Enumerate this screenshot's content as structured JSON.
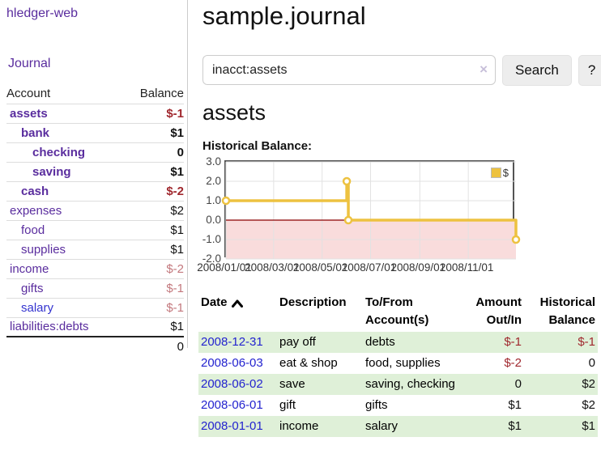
{
  "app_title": "hledger-web",
  "sidebar": {
    "journal_link": "Journal",
    "headers": {
      "account": "Account",
      "balance": "Balance"
    },
    "accounts": [
      {
        "name": "assets",
        "balance": "$-1",
        "depth": 1,
        "bold": true,
        "balance_style": "neg-strong"
      },
      {
        "name": "bank",
        "balance": "$1",
        "depth": 2,
        "bold": true,
        "balance_style": "pos"
      },
      {
        "name": "checking",
        "balance": "0",
        "depth": 3,
        "bold": true,
        "balance_style": "pos"
      },
      {
        "name": "saving",
        "balance": "$1",
        "depth": 3,
        "bold": true,
        "balance_style": "pos"
      },
      {
        "name": "cash",
        "balance": "$-2",
        "depth": 2,
        "bold": true,
        "balance_style": "neg-strong"
      },
      {
        "name": "expenses",
        "balance": "$2",
        "depth": 1,
        "bold": false,
        "balance_style": "pos"
      },
      {
        "name": "food",
        "balance": "$1",
        "depth": 2,
        "bold": false,
        "balance_style": "pos"
      },
      {
        "name": "supplies",
        "balance": "$1",
        "depth": 2,
        "bold": false,
        "balance_style": "pos"
      },
      {
        "name": "income",
        "balance": "$-2",
        "depth": 1,
        "bold": false,
        "balance_style": "neg-muted"
      },
      {
        "name": "gifts",
        "balance": "$-1",
        "depth": 2,
        "bold": false,
        "balance_style": "neg-muted"
      },
      {
        "name": "salary",
        "balance": "$-1",
        "depth": 2,
        "bold": false,
        "balance_style": "neg-muted",
        "link_style": "blue"
      },
      {
        "name": "liabilities:debts",
        "balance": "$1",
        "depth": 1,
        "bold": false,
        "balance_style": "pos"
      }
    ],
    "total": "0"
  },
  "main": {
    "title": "sample.journal",
    "search": {
      "value": "inacct:assets",
      "clear_icon": "×",
      "button_label": "Search",
      "help_label": "?"
    },
    "account_heading": "assets",
    "chart_title": "Historical Balance:"
  },
  "chart_data": {
    "type": "line",
    "title": "Historical Balance",
    "step": true,
    "series": [
      {
        "name": "$",
        "points": [
          {
            "date": "2008-01-01",
            "value": 1
          },
          {
            "date": "2008-06-01",
            "value": 2
          },
          {
            "date": "2008-06-03",
            "value": 0
          },
          {
            "date": "2008-12-31",
            "value": -1
          }
        ]
      }
    ],
    "xlim": [
      "2008-01-01",
      "2008-12-31"
    ],
    "ylim": [
      -2,
      3
    ],
    "yticks": [
      3,
      2,
      1,
      0,
      -1,
      -2
    ],
    "ytick_labels": [
      "3.0",
      "2.0",
      "1.0",
      "0.0",
      "-1.0",
      "-2.0"
    ],
    "xticks": [
      "2008-01-01",
      "2008-03-01",
      "2008-05-01",
      "2008-07-01",
      "2008-09-01",
      "2008-11-01"
    ],
    "xtick_labels": [
      "2008/01/01",
      "2008/03/01",
      "2008/05/01",
      "2008/07/01",
      "2008/09/01",
      "2008/11/01"
    ],
    "legend": {
      "label": "$",
      "position": "top-right"
    },
    "series_color": "#edc240",
    "zero_line_color": "#8b0000",
    "negative_region_fill": "#f9dcdc",
    "grid_color": "#e2e2e2",
    "grid": true
  },
  "transactions": {
    "headers": {
      "date": "Date",
      "description": "Description",
      "accounts": "To/From Account(s)",
      "amount": "Amount Out/In",
      "balance": "Historical Balance"
    },
    "sort_direction": "ascending",
    "rows": [
      {
        "date": "2008-12-31",
        "description": "pay off",
        "accounts": "debts",
        "amount": "$-1",
        "balance": "$-1",
        "amount_style": "neg",
        "balance_style": "neg"
      },
      {
        "date": "2008-06-03",
        "description": "eat & shop",
        "accounts": "food, supplies",
        "amount": "$-2",
        "balance": "0",
        "amount_style": "neg",
        "balance_style": "pos"
      },
      {
        "date": "2008-06-02",
        "description": "save",
        "accounts": "saving, checking",
        "amount": "0",
        "balance": "$2",
        "amount_style": "pos",
        "balance_style": "pos"
      },
      {
        "date": "2008-06-01",
        "description": "gift",
        "accounts": "gifts",
        "amount": "$1",
        "balance": "$2",
        "amount_style": "pos",
        "balance_style": "pos"
      },
      {
        "date": "2008-01-01",
        "description": "income",
        "accounts": "salary",
        "amount": "$1",
        "balance": "$1",
        "amount_style": "pos",
        "balance_style": "pos"
      }
    ]
  }
}
